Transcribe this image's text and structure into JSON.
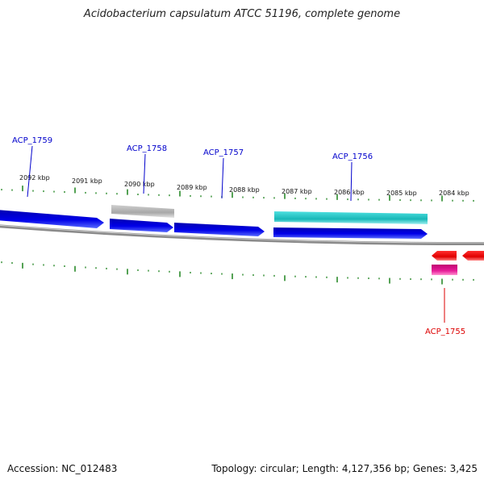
{
  "title": "Acidobacterium capsulatum ATCC 51196, complete genome",
  "footer": {
    "accession": "Accession: NC_012483",
    "summary": "Topology: circular; Length: 4,127,356 bp; Genes: 3,425"
  },
  "scale_labels": [
    "2092 kbp",
    "2091 kbp",
    "2090 kbp",
    "2089 kbp",
    "2088 kbp",
    "2087 kbp",
    "2086 kbp",
    "2085 kbp",
    "2084 kbp"
  ],
  "genes": [
    {
      "label": "ACP_1759",
      "strand": "forward",
      "color": "#0000cc"
    },
    {
      "label": "ACP_1758",
      "strand": "forward",
      "color": "#0000cc"
    },
    {
      "label": "ACP_1757",
      "strand": "forward",
      "color": "#0000cc"
    },
    {
      "label": "ACP_1756",
      "strand": "forward",
      "color": "#0000cc"
    },
    {
      "label": "ACP_1755",
      "strand": "reverse",
      "color": "#dd0000"
    }
  ],
  "colors": {
    "cds_forward": "#0000e0",
    "cds_reverse": "#ee0000",
    "gene_gray": "#b0b0b0",
    "gene_cyan": "#22c8c8",
    "gene_magenta": "#e0189a",
    "backbone": "#888888",
    "ticks": "#2a8a2a"
  }
}
